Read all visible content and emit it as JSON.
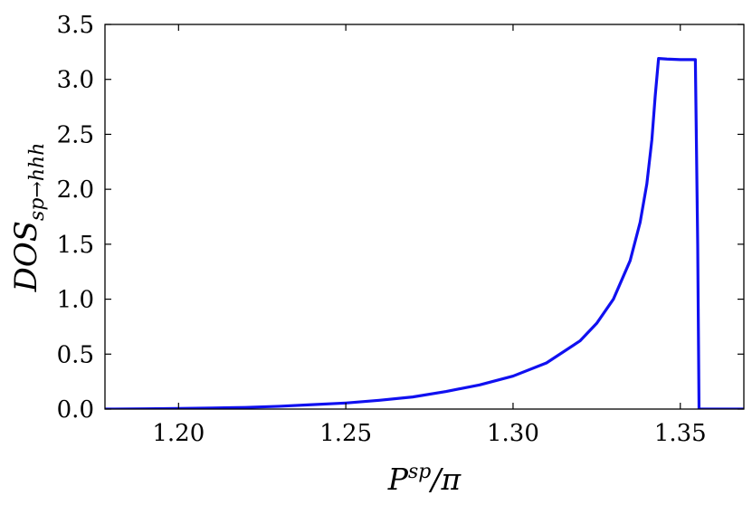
{
  "chart_data": {
    "type": "line",
    "title": "",
    "xlabel": {
      "base": "P",
      "sup": "sp",
      "suffix": "/π"
    },
    "ylabel": {
      "base": "DOS",
      "sub": "sp→hhh"
    },
    "xlim": [
      1.178,
      1.369
    ],
    "ylim": [
      0,
      3.5
    ],
    "x_ticks": [
      {
        "value": 1.2,
        "label": "1.20"
      },
      {
        "value": 1.25,
        "label": "1.25"
      },
      {
        "value": 1.3,
        "label": "1.30"
      },
      {
        "value": 1.35,
        "label": "1.35"
      }
    ],
    "y_ticks": [
      {
        "value": 0.0,
        "label": "0.0"
      },
      {
        "value": 0.5,
        "label": "0.5"
      },
      {
        "value": 1.0,
        "label": "1.0"
      },
      {
        "value": 1.5,
        "label": "1.5"
      },
      {
        "value": 2.0,
        "label": "2.0"
      },
      {
        "value": 2.5,
        "label": "2.5"
      },
      {
        "value": 3.0,
        "label": "3.0"
      },
      {
        "value": 3.5,
        "label": "3.5"
      }
    ],
    "grid": false,
    "legend": "none",
    "series": [
      {
        "color": "#1010f0",
        "x": [
          1.178,
          1.19,
          1.2,
          1.21,
          1.22,
          1.23,
          1.24,
          1.25,
          1.26,
          1.27,
          1.28,
          1.29,
          1.3,
          1.31,
          1.32,
          1.325,
          1.33,
          1.335,
          1.338,
          1.34,
          1.3415,
          1.3425,
          1.3435,
          1.346,
          1.35,
          1.3535,
          1.3545,
          1.3552,
          1.3556,
          1.36,
          1.369
        ],
        "y": [
          0.0,
          0.002,
          0.005,
          0.01,
          0.015,
          0.025,
          0.04,
          0.055,
          0.08,
          0.11,
          0.16,
          0.22,
          0.3,
          0.42,
          0.62,
          0.78,
          1.0,
          1.35,
          1.7,
          2.05,
          2.45,
          2.85,
          3.19,
          3.185,
          3.18,
          3.18,
          3.18,
          1.5,
          0.0,
          0.0,
          0.0
        ]
      }
    ]
  }
}
